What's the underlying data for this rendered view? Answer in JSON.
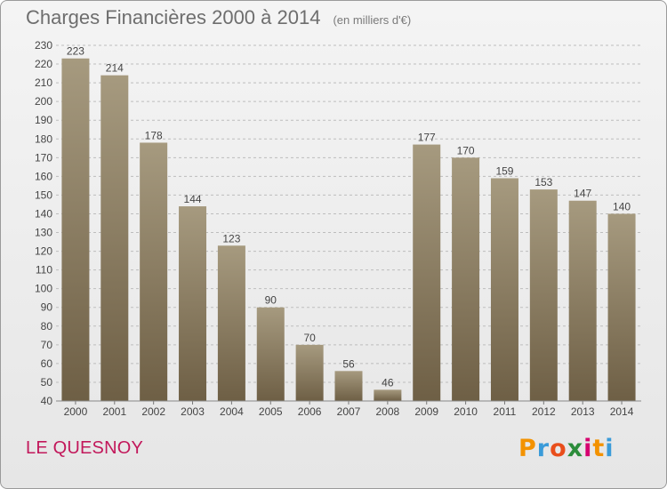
{
  "header": {
    "title": "Charges Financières 2000 à 2014",
    "subtitle": "(en milliers d'€)"
  },
  "footer": {
    "commune": "LE QUESNOY"
  },
  "logo": {
    "text": "Proxiti",
    "letters": [
      {
        "char": "P",
        "color": "#f39200"
      },
      {
        "char": "r",
        "color": "#3a9bd9"
      },
      {
        "char": "o",
        "color": "#e94e1b"
      },
      {
        "char": "x",
        "color": "#2b8c3a"
      },
      {
        "char": "i",
        "color": "#d6006f"
      },
      {
        "char": "t",
        "color": "#f39200"
      },
      {
        "char": "i",
        "color": "#3a9bd9"
      }
    ]
  },
  "colors": {
    "bar_top": "#a69a7f",
    "bar_bottom": "#6e5f45",
    "grid": "#bdbdbd",
    "text": "#444444",
    "commune": "#c2185b"
  },
  "chart_data": {
    "type": "bar",
    "categories": [
      "2000",
      "2001",
      "2002",
      "2003",
      "2004",
      "2005",
      "2006",
      "2007",
      "2008",
      "2009",
      "2010",
      "2011",
      "2012",
      "2013",
      "2014"
    ],
    "values": [
      223,
      214,
      178,
      144,
      123,
      90,
      70,
      56,
      46,
      177,
      170,
      159,
      153,
      147,
      140
    ],
    "title": "Charges Financières 2000 à 2014",
    "subtitle": "(en milliers d'€)",
    "xlabel": "",
    "ylabel": "",
    "ylim": [
      40,
      230
    ],
    "ytick_step": 10,
    "grid": true,
    "data_labels": true
  }
}
